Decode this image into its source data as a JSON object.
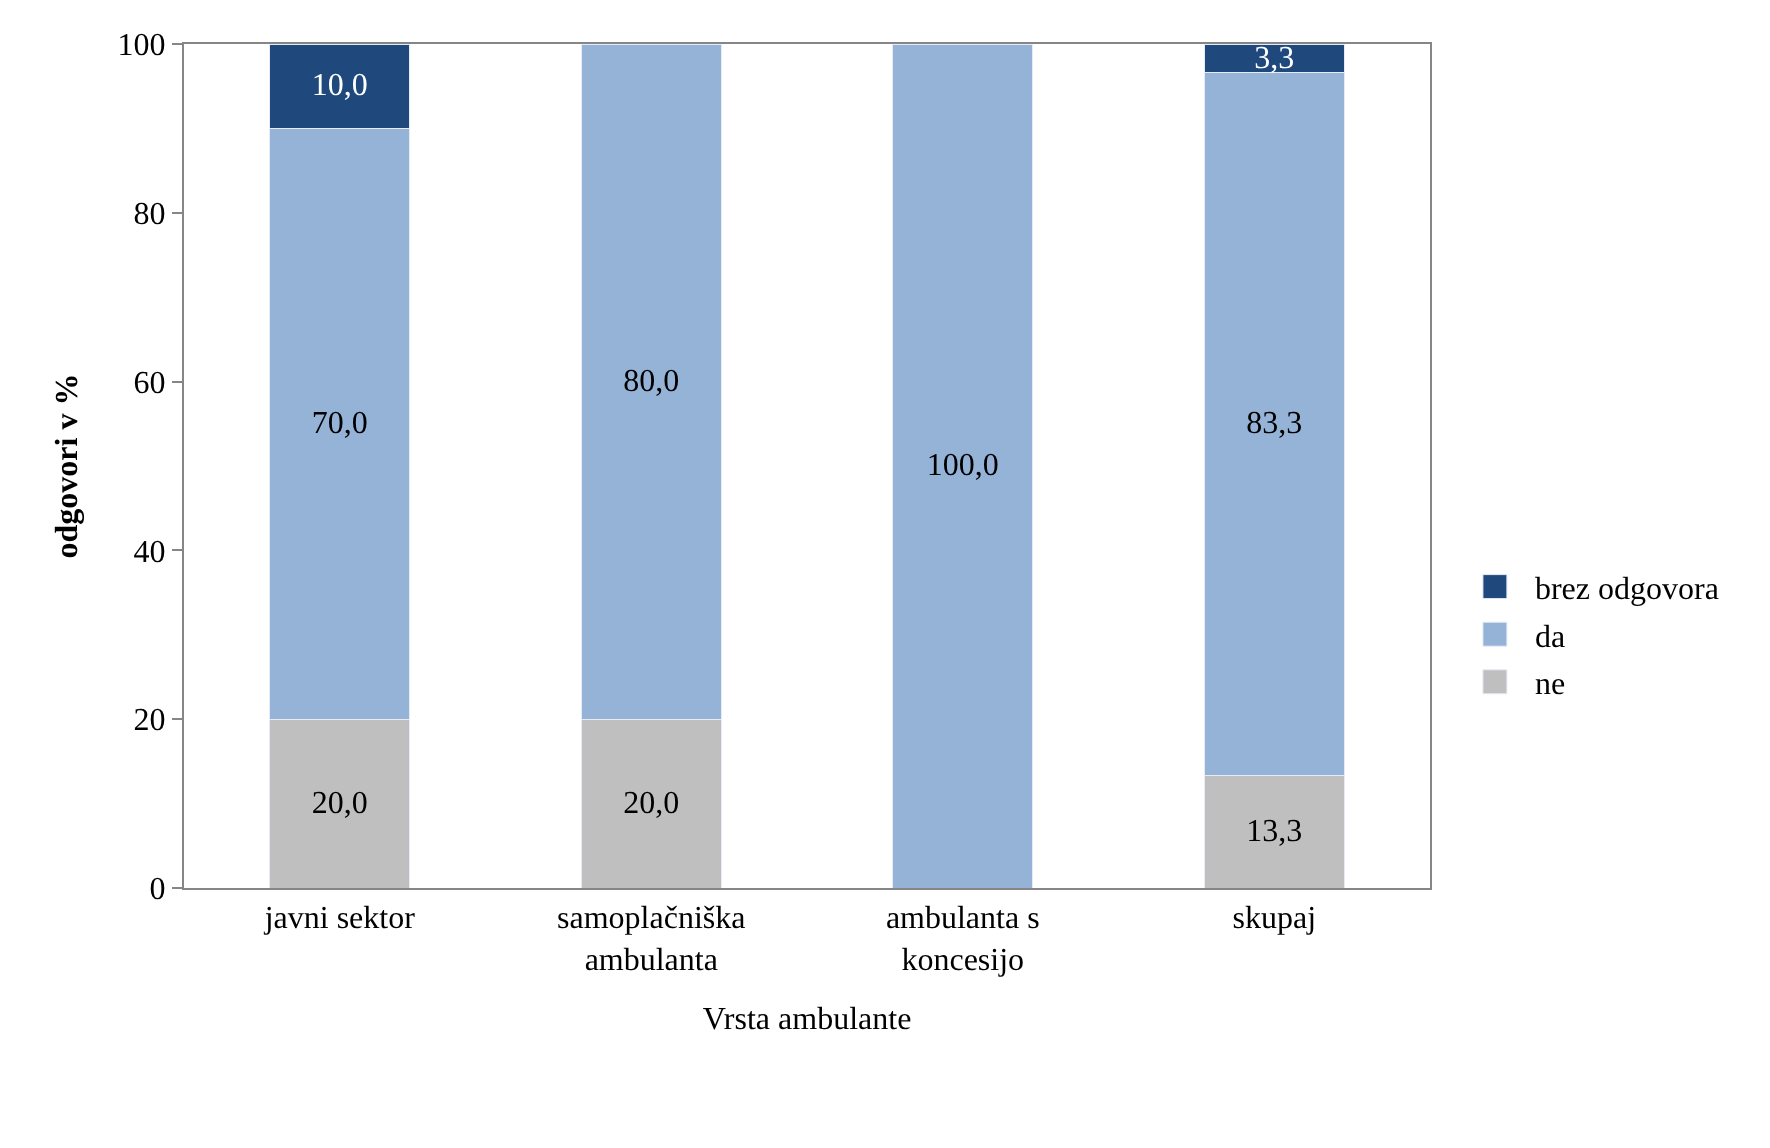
{
  "chart_data": {
    "type": "bar",
    "stacked": true,
    "xlabel": "Vrsta ambulante",
    "ylabel": "odgovori v %",
    "categories": [
      "javni sektor",
      "samoplačniška\nambulanta",
      "ambulanta s\nkoncesijo",
      "skupaj"
    ],
    "ylim": [
      0,
      100
    ],
    "yticks": [
      0,
      20,
      40,
      60,
      80,
      100
    ],
    "legend": "right",
    "series": [
      {
        "name": "ne",
        "color": "#bfbfbf",
        "values": [
          20,
          20,
          0,
          13.3
        ],
        "value_labels": [
          "20,0",
          "20,0",
          null,
          "13,3"
        ]
      },
      {
        "name": "da",
        "color": "#95b3d7",
        "values": [
          70,
          80,
          100,
          83.3
        ],
        "value_labels": [
          "70,0",
          "80,0",
          "100,0",
          "83,3"
        ]
      },
      {
        "name": "brez odgovora",
        "color": "#1f497d",
        "values": [
          10,
          0,
          0,
          3.3
        ],
        "value_labels": [
          "10,0",
          null,
          null,
          "3,3"
        ]
      }
    ]
  }
}
